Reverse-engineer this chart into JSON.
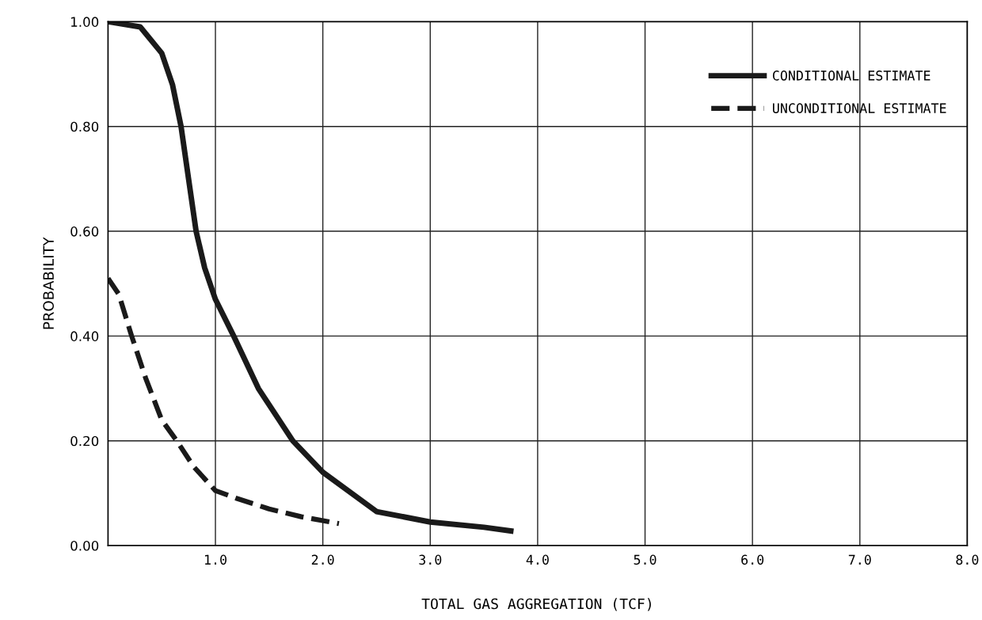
{
  "chart_data": {
    "type": "line",
    "xlabel": "TOTAL GAS AGGREGATION (TCF)",
    "ylabel": "PROBABILITY",
    "xlim": [
      0,
      8
    ],
    "xticks": [
      {
        "value": 1,
        "label": "1.0"
      },
      {
        "value": 2,
        "label": "2.0"
      },
      {
        "value": 3,
        "label": "3.0"
      },
      {
        "value": 4,
        "label": "4.0"
      },
      {
        "value": 5,
        "label": "5.0"
      },
      {
        "value": 6,
        "label": "6.0"
      },
      {
        "value": 7,
        "label": "7.0"
      },
      {
        "value": 8,
        "label": "8.0"
      }
    ],
    "ylim": [
      0,
      1
    ],
    "yticks": [
      {
        "value": 0,
        "label": "0.00"
      },
      {
        "value": 0.2,
        "label": "0.20"
      },
      {
        "value": 0.4,
        "label": "0.40"
      },
      {
        "value": 0.6,
        "label": "0.60"
      },
      {
        "value": 0.8,
        "label": "0.80"
      },
      {
        "value": 1,
        "label": "1.00"
      }
    ],
    "grid": true,
    "legend": "top right",
    "marker": "none",
    "series": [
      {
        "name": "CONDITIONAL ESTIMATE",
        "color": "#1a1a1a",
        "line_style": "solid",
        "x": [
          0,
          0.3,
          0.5,
          0.6,
          0.68,
          0.75,
          0.82,
          0.9,
          1.0,
          1.17,
          1.4,
          1.72,
          2.0,
          2.5,
          3.0,
          3.5,
          3.75
        ],
        "values": [
          1.0,
          0.99,
          0.94,
          0.88,
          0.8,
          0.7,
          0.6,
          0.53,
          0.47,
          0.4,
          0.3,
          0.2,
          0.14,
          0.065,
          0.045,
          0.035,
          0.028
        ]
      },
      {
        "name": "UNCONDITIONAL ESTIMATE",
        "color": "#1a1a1a",
        "line_style": "dashed",
        "x": [
          0,
          0.1,
          0.22,
          0.35,
          0.5,
          0.64,
          0.8,
          1.0,
          1.2,
          1.5,
          1.8,
          2.15
        ],
        "values": [
          0.51,
          0.48,
          0.4,
          0.32,
          0.24,
          0.2,
          0.15,
          0.105,
          0.09,
          0.07,
          0.055,
          0.042
        ]
      }
    ]
  }
}
